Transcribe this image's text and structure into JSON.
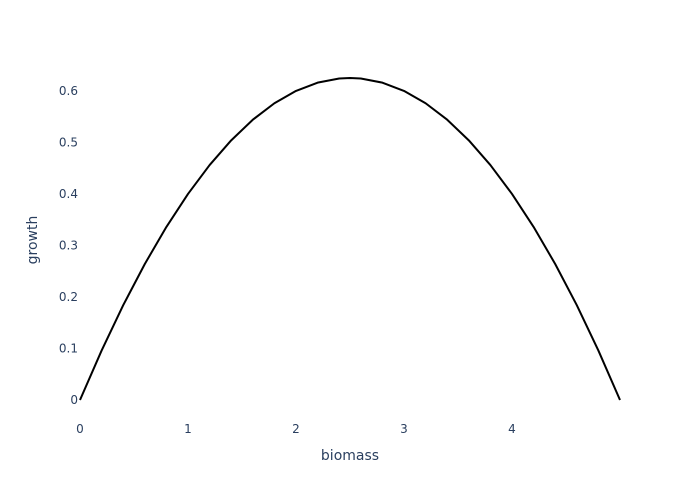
{
  "chart_data": {
    "type": "line",
    "title": "",
    "xlabel": "biomass",
    "ylabel": "growth",
    "xlim": [
      0,
      5
    ],
    "ylim": [
      0,
      0.625
    ],
    "x_ticks": [
      0,
      1,
      2,
      3,
      4
    ],
    "x_tick_labels": [
      "0",
      "1",
      "2",
      "3",
      "4"
    ],
    "y_ticks": [
      0,
      0.1,
      0.2,
      0.3,
      0.4,
      0.5,
      0.6
    ],
    "y_tick_labels": [
      "0",
      "0.1",
      "0.2",
      "0.3",
      "0.4",
      "0.5",
      "0.6"
    ],
    "grid": false,
    "legend": "none",
    "series": [
      {
        "color": "#000000",
        "x": [
          0,
          0.2,
          0.4,
          0.6,
          0.8,
          1.0,
          1.2,
          1.4,
          1.6,
          1.8,
          2.0,
          2.2,
          2.4,
          2.5,
          2.6,
          2.8,
          3.0,
          3.2,
          3.4,
          3.6,
          3.8,
          4.0,
          4.2,
          4.4,
          4.6,
          4.8,
          5.0
        ],
        "y": [
          0,
          0.096,
          0.184,
          0.264,
          0.336,
          0.4,
          0.456,
          0.504,
          0.544,
          0.576,
          0.6,
          0.616,
          0.624,
          0.625,
          0.624,
          0.616,
          0.6,
          0.576,
          0.544,
          0.504,
          0.456,
          0.4,
          0.336,
          0.264,
          0.184,
          0.096,
          0
        ]
      }
    ]
  }
}
